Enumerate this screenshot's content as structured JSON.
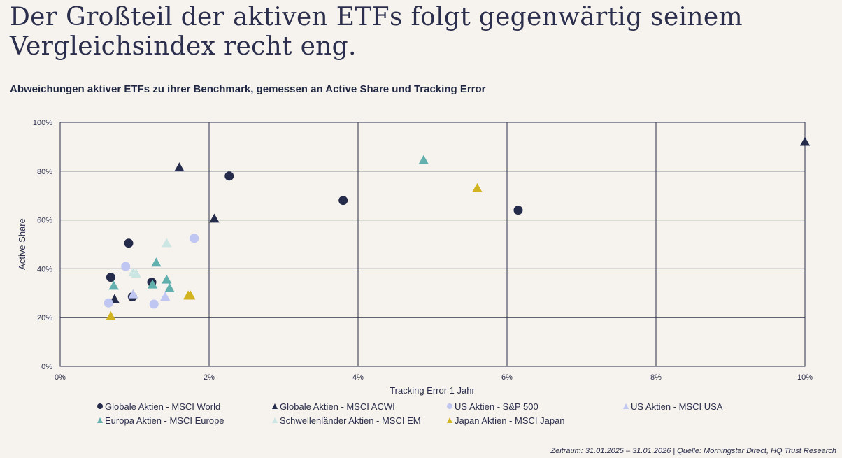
{
  "headline": "Der Großteil der aktiven ETFs folgt gegenwärtig seinem Vergleichsindex recht eng.",
  "subtitle": "Abweichungen aktiver ETFs zu ihrer Benchmark, gemessen an Active Share und Tracking Error",
  "source": "Zeitraum: 31.01.2025 – 31.01.2026 | Quelle: Morningstar Direct, HQ Trust Research",
  "chart_data": {
    "type": "scatter",
    "title": "",
    "xlabel": "Tracking Error 1 Jahr",
    "ylabel": "Active Share",
    "xlim": [
      0,
      10
    ],
    "ylim": [
      0,
      100
    ],
    "x_ticks": [
      0,
      2,
      4,
      6,
      8,
      10
    ],
    "y_ticks": [
      0,
      20,
      40,
      60,
      80,
      100
    ],
    "x_tick_labels": [
      "0%",
      "2%",
      "4%",
      "6%",
      "8%",
      "10%"
    ],
    "y_tick_labels": [
      "0%",
      "20%",
      "40%",
      "60%",
      "80%",
      "100%"
    ],
    "grid": true,
    "legend_position": "bottom",
    "series": [
      {
        "name": "Globale Aktien - MSCI World",
        "marker": "circle",
        "color": "#252b4a",
        "points": [
          [
            2.27,
            78
          ],
          [
            3.8,
            68
          ],
          [
            6.15,
            64
          ],
          [
            0.92,
            50.5
          ],
          [
            0.68,
            36.5
          ],
          [
            1.23,
            34.5
          ],
          [
            0.97,
            28.5
          ]
        ]
      },
      {
        "name": "Globale Aktien - MSCI ACWI",
        "marker": "triangle",
        "color": "#252b4a",
        "points": [
          [
            10.0,
            92
          ],
          [
            1.6,
            81.5
          ],
          [
            2.07,
            60.5
          ],
          [
            0.73,
            27.5
          ]
        ]
      },
      {
        "name": "US Aktien - S&P 500",
        "marker": "circle",
        "color": "#bfc6f2",
        "points": [
          [
            1.8,
            52.5
          ],
          [
            0.88,
            41
          ],
          [
            0.65,
            26
          ],
          [
            1.26,
            25.5
          ]
        ]
      },
      {
        "name": "US Aktien - MSCI USA",
        "marker": "triangle",
        "color": "#bfc6f2",
        "points": [
          [
            0.98,
            29.5
          ],
          [
            1.41,
            28.5
          ]
        ]
      },
      {
        "name": "Europa Aktien - MSCI Europe",
        "marker": "triangle",
        "color": "#62b0ae",
        "points": [
          [
            4.88,
            84.5
          ],
          [
            1.29,
            42.5
          ],
          [
            0.72,
            33
          ],
          [
            1.24,
            33.5
          ],
          [
            1.43,
            35.5
          ],
          [
            1.47,
            32
          ]
        ]
      },
      {
        "name": "Schwellenländer Aktien - MSCI EM",
        "marker": "triangle",
        "color": "#cce6e3",
        "points": [
          [
            1.43,
            50.5
          ],
          [
            0.98,
            38.5
          ],
          [
            1.02,
            38
          ]
        ]
      },
      {
        "name": "Japan Aktien - MSCI Japan",
        "marker": "triangle",
        "color": "#d1b41f",
        "points": [
          [
            5.6,
            73
          ],
          [
            1.72,
            29
          ],
          [
            1.75,
            29
          ],
          [
            0.68,
            20.5
          ]
        ]
      }
    ]
  }
}
